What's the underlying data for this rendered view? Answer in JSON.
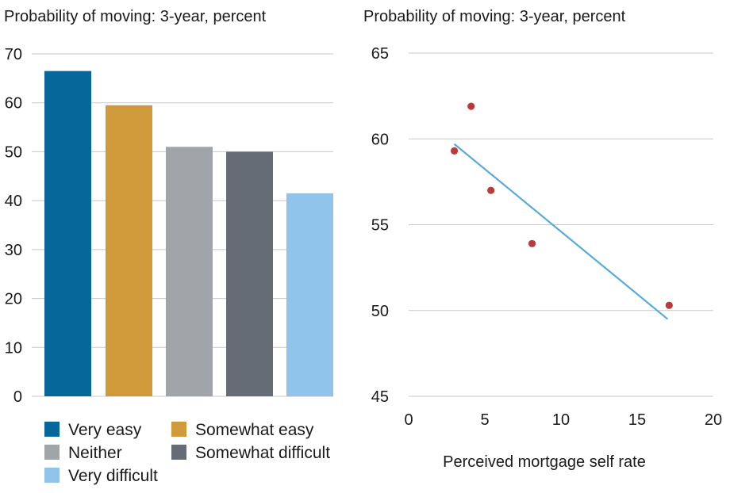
{
  "chart_data": [
    {
      "type": "bar",
      "title": "Probability of moving: 3-year, percent",
      "categories": [
        "Very easy",
        "Somewhat easy",
        "Neither",
        "Somewhat difficult",
        "Very difficult"
      ],
      "values": [
        66.5,
        59.5,
        51,
        50,
        41.5
      ],
      "ylim": [
        0,
        70
      ],
      "yticks": [
        0,
        10,
        20,
        30,
        40,
        50,
        60,
        70
      ],
      "grid": true,
      "legend_position": "bottom",
      "colors": [
        "#05679a",
        "#d09a3b",
        "#a1a4a9",
        "#656c76",
        "#91c4eb"
      ]
    },
    {
      "type": "scatter",
      "title": "Probability of moving: 3-year, percent",
      "xlabel": "Perceived mortgage self rate",
      "xlim": [
        0,
        20
      ],
      "ylim": [
        45,
        65
      ],
      "xticks": [
        0,
        5,
        10,
        15,
        20
      ],
      "yticks": [
        45,
        50,
        55,
        60,
        65
      ],
      "grid": true,
      "points": [
        {
          "x": 3.0,
          "y": 59.3
        },
        {
          "x": 4.1,
          "y": 61.9
        },
        {
          "x": 5.4,
          "y": 57.0
        },
        {
          "x": 8.1,
          "y": 53.9
        },
        {
          "x": 17.1,
          "y": 50.3
        }
      ],
      "trendline": [
        {
          "x": 3.0,
          "y": 59.7
        },
        {
          "x": 17.0,
          "y": 49.5
        }
      ],
      "point_color": "#bb3b3a",
      "trendline_color": "#5aaadb"
    }
  ]
}
